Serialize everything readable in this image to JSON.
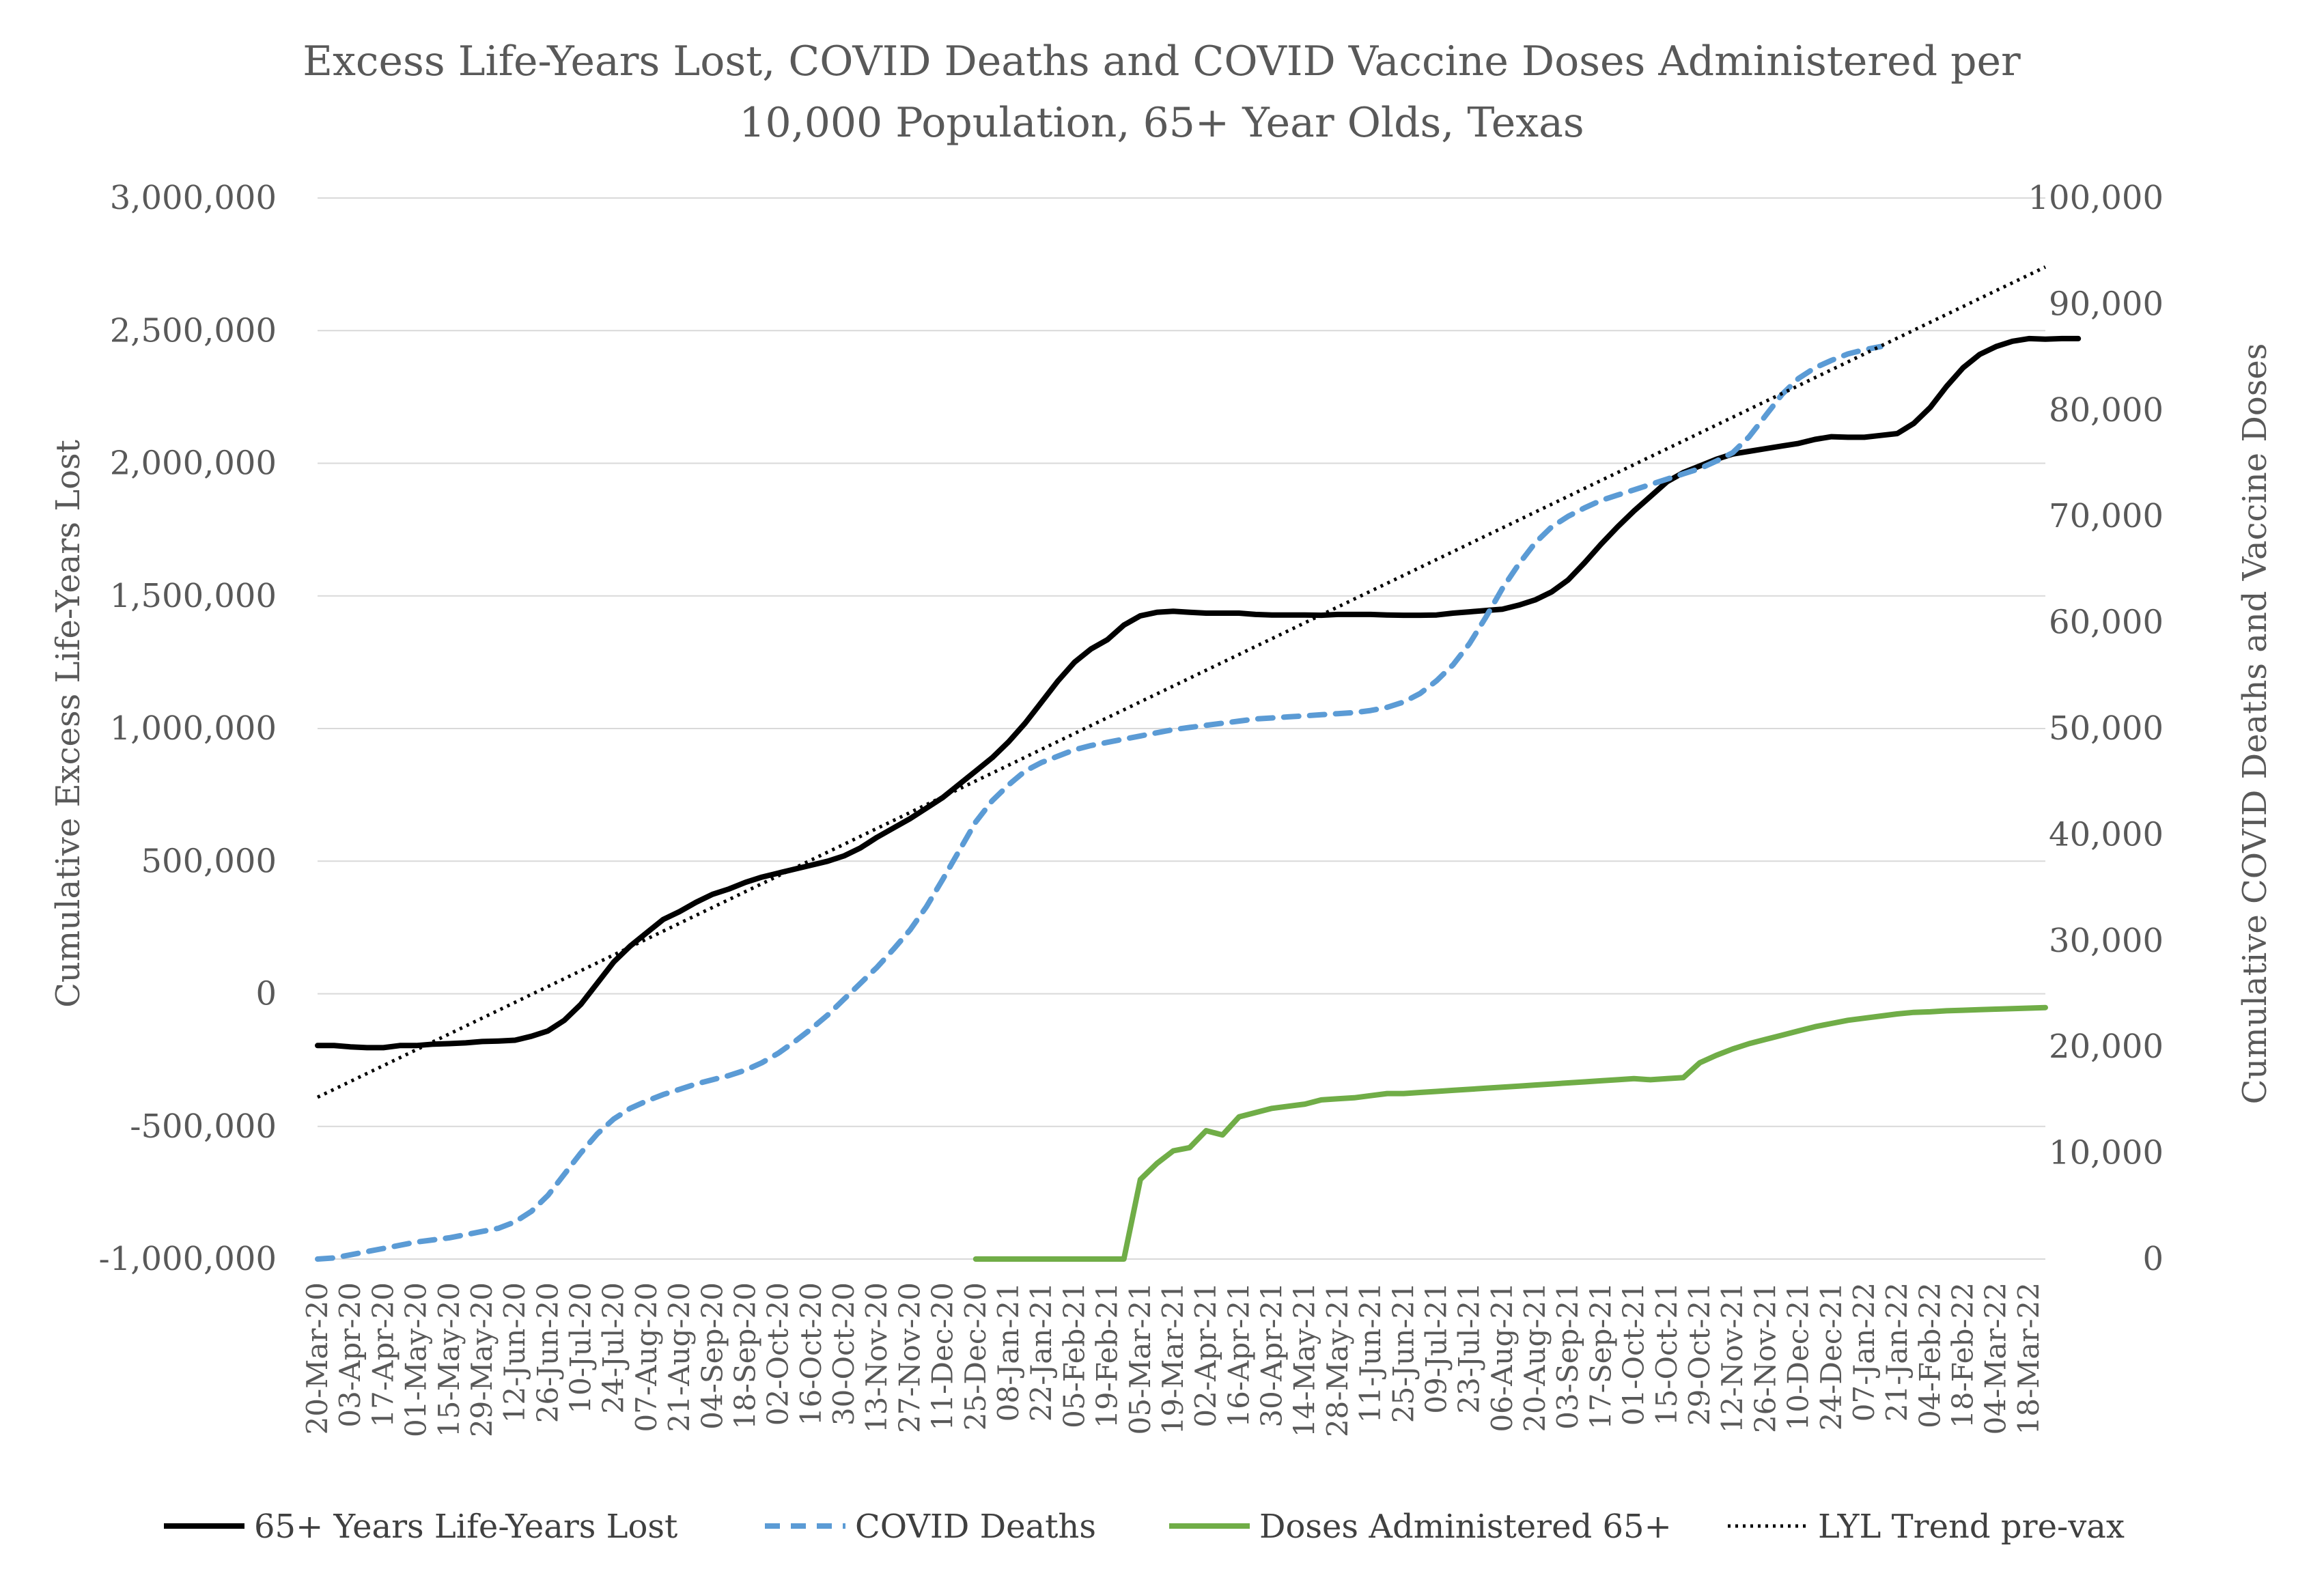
{
  "chart_data": {
    "type": "line",
    "title": "Excess Life-Years Lost, COVID Deaths and COVID Vaccine Doses Administered per 10,000 Population, 65+ Year Olds, Texas",
    "title_lines": [
      "Excess Life-Years Lost, COVID Deaths and COVID Vaccine Doses Administered per",
      "10,000 Population, 65+ Year Olds, Texas"
    ],
    "ylabel_left": "Cumulative Excess Life-Years Lost",
    "ylabel_right": "Cumulative COVID Deaths and Vaccine Doses",
    "ylim_left": [
      -1000000,
      3000000
    ],
    "ylim_right": [
      0,
      100000
    ],
    "yticks_left": [
      "3,000,000",
      "2,500,000",
      "2,000,000",
      "1,500,000",
      "1,000,000",
      "500,000",
      "0",
      "-500,000",
      "-1,000,000"
    ],
    "yticks_right": [
      "100,000",
      "90,000",
      "80,000",
      "70,000",
      "60,000",
      "50,000",
      "40,000",
      "30,000",
      "20,000",
      "10,000",
      "0"
    ],
    "grid": true,
    "legend_position": "bottom",
    "x_labels": [
      "20-Mar-20",
      "03-Apr-20",
      "17-Apr-20",
      "01-May-20",
      "15-May-20",
      "29-May-20",
      "12-Jun-20",
      "26-Jun-20",
      "10-Jul-20",
      "24-Jul-20",
      "07-Aug-20",
      "21-Aug-20",
      "04-Sep-20",
      "18-Sep-20",
      "02-Oct-20",
      "16-Oct-20",
      "30-Oct-20",
      "13-Nov-20",
      "27-Nov-20",
      "11-Dec-20",
      "25-Dec-20",
      "08-Jan-21",
      "22-Jan-21",
      "05-Feb-21",
      "19-Feb-21",
      "05-Mar-21",
      "19-Mar-21",
      "02-Apr-21",
      "16-Apr-21",
      "30-Apr-21",
      "14-May-21",
      "28-May-21",
      "11-Jun-21",
      "25-Jun-21",
      "09-Jul-21",
      "23-Jul-21",
      "06-Aug-21",
      "20-Aug-21",
      "03-Sep-21",
      "17-Sep-21",
      "01-Oct-21",
      "15-Oct-21",
      "29-Oct-21",
      "12-Nov-21",
      "26-Nov-21",
      "10-Dec-21",
      "24-Dec-21",
      "07-Jan-22",
      "21-Jan-22",
      "04-Feb-22",
      "18-Feb-22",
      "04-Mar-22",
      "18-Mar-22"
    ],
    "x_weeks_total": 105,
    "series": [
      {
        "name": "65+ Years Life-Years Lost",
        "axis": "left",
        "color": "#000000",
        "style": "solid",
        "values": [
          -195000,
          -195000,
          -200000,
          -203000,
          -203000,
          -195000,
          -195000,
          -190000,
          -188000,
          -185000,
          -180000,
          -178000,
          -175000,
          -160000,
          -140000,
          -100000,
          -40000,
          40000,
          120000,
          180000,
          230000,
          280000,
          310000,
          345000,
          375000,
          395000,
          420000,
          440000,
          455000,
          470000,
          485000,
          500000,
          520000,
          550000,
          590000,
          625000,
          660000,
          700000,
          740000,
          790000,
          840000,
          890000,
          950000,
          1020000,
          1100000,
          1180000,
          1250000,
          1300000,
          1335000,
          1390000,
          1425000,
          1438000,
          1442000,
          1438000,
          1435000,
          1435000,
          1435000,
          1430000,
          1428000,
          1428000,
          1428000,
          1427000,
          1430000,
          1430000,
          1430000,
          1428000,
          1427000,
          1427000,
          1428000,
          1435000,
          1440000,
          1445000,
          1450000,
          1465000,
          1485000,
          1515000,
          1560000,
          1625000,
          1695000,
          1760000,
          1820000,
          1875000,
          1930000,
          1965000,
          1990000,
          2015000,
          2035000,
          2045000,
          2055000,
          2065000,
          2075000,
          2090000,
          2100000,
          2098000,
          2098000,
          2105000,
          2112000,
          2150000,
          2210000,
          2290000,
          2360000,
          2410000,
          2440000,
          2460000,
          2470000,
          2468000,
          2470000,
          2470000
        ]
      },
      {
        "name": "COVID Deaths",
        "axis": "right",
        "color": "#5B9BD5",
        "style": "dashed",
        "values": [
          0,
          100,
          400,
          700,
          1000,
          1300,
          1600,
          1800,
          2000,
          2300,
          2600,
          2900,
          3500,
          4500,
          6000,
          8000,
          10000,
          11800,
          13200,
          14200,
          14900,
          15500,
          16000,
          16500,
          16900,
          17300,
          17800,
          18500,
          19400,
          20500,
          21700,
          23000,
          24500,
          26000,
          27500,
          29200,
          31000,
          33200,
          35800,
          38500,
          41200,
          43200,
          44700,
          46000,
          46800,
          47400,
          48000,
          48400,
          48700,
          49000,
          49300,
          49600,
          49900,
          50100,
          50300,
          50500,
          50700,
          50900,
          51000,
          51100,
          51200,
          51300,
          51400,
          51500,
          51700,
          52000,
          52500,
          53300,
          54500,
          56000,
          58000,
          60500,
          63200,
          65500,
          67500,
          69000,
          70000,
          70800,
          71500,
          72000,
          72500,
          73000,
          73500,
          74000,
          74500,
          75200,
          76000,
          77500,
          79500,
          81500,
          83000,
          84000,
          84700,
          85300,
          85700,
          86000
        ]
      },
      {
        "name": "Doses Administered 65+",
        "axis": "right",
        "color": "#70AD47",
        "style": "solid",
        "start_week": 40,
        "values": [
          0,
          0,
          0,
          0,
          0,
          0,
          0,
          0,
          0,
          0,
          7500,
          9000,
          10200,
          10500,
          12100,
          11700,
          13400,
          13800,
          14200,
          14400,
          14600,
          15000,
          15100,
          15200,
          15400,
          15600,
          15600,
          15700,
          15800,
          15900,
          16000,
          16100,
          16200,
          16300,
          16400,
          16500,
          16600,
          16700,
          16800,
          16900,
          17000,
          16900,
          17000,
          17100,
          18500,
          19200,
          19800,
          20300,
          20700,
          21100,
          21500,
          21900,
          22200,
          22500,
          22700,
          22900,
          23100,
          23250,
          23300,
          23400,
          23450,
          23500,
          23550,
          23600,
          23650,
          23700
        ]
      },
      {
        "name": "LYL Trend pre-vax",
        "axis": "left",
        "color": "#000000",
        "style": "dotted",
        "x_weeks": [
          0,
          105
        ],
        "values": [
          -390000,
          2740000
        ]
      }
    ]
  }
}
